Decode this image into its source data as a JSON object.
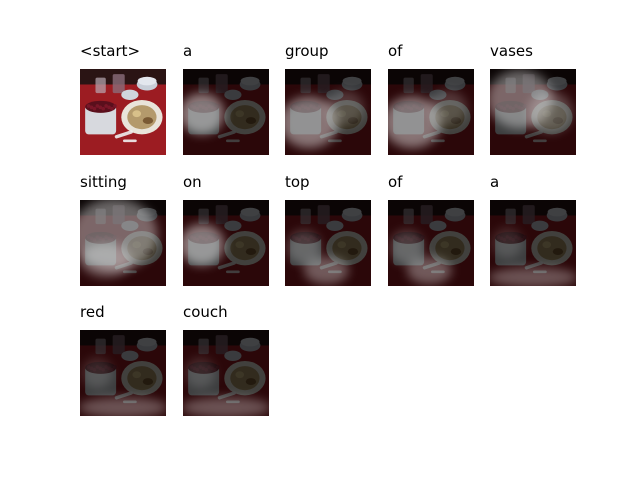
{
  "figure": {
    "tokens": [
      {
        "word": "<start>",
        "focus": "none"
      },
      {
        "word": "a",
        "focus": "left-bowl"
      },
      {
        "word": "group",
        "focus": "lower-left"
      },
      {
        "word": "of",
        "focus": "lower-left"
      },
      {
        "word": "vases",
        "focus": "upper-left"
      },
      {
        "word": "sitting",
        "focus": "wide"
      },
      {
        "word": "on",
        "focus": "left-bowl"
      },
      {
        "word": "top",
        "focus": "bottom-center"
      },
      {
        "word": "of",
        "focus": "bottom-center"
      },
      {
        "word": "a",
        "focus": "bottom-strip"
      },
      {
        "word": "red",
        "focus": "bottom-strip"
      },
      {
        "word": "couch",
        "focus": "bottom-strip"
      }
    ],
    "colors": {
      "background": "#ffffff",
      "tablecloth": "#9c1c22",
      "bowl": "#d7d9de",
      "berries": "#5a0f1c",
      "plates": "#c8ced8",
      "dark_overlay": "#000000"
    }
  }
}
